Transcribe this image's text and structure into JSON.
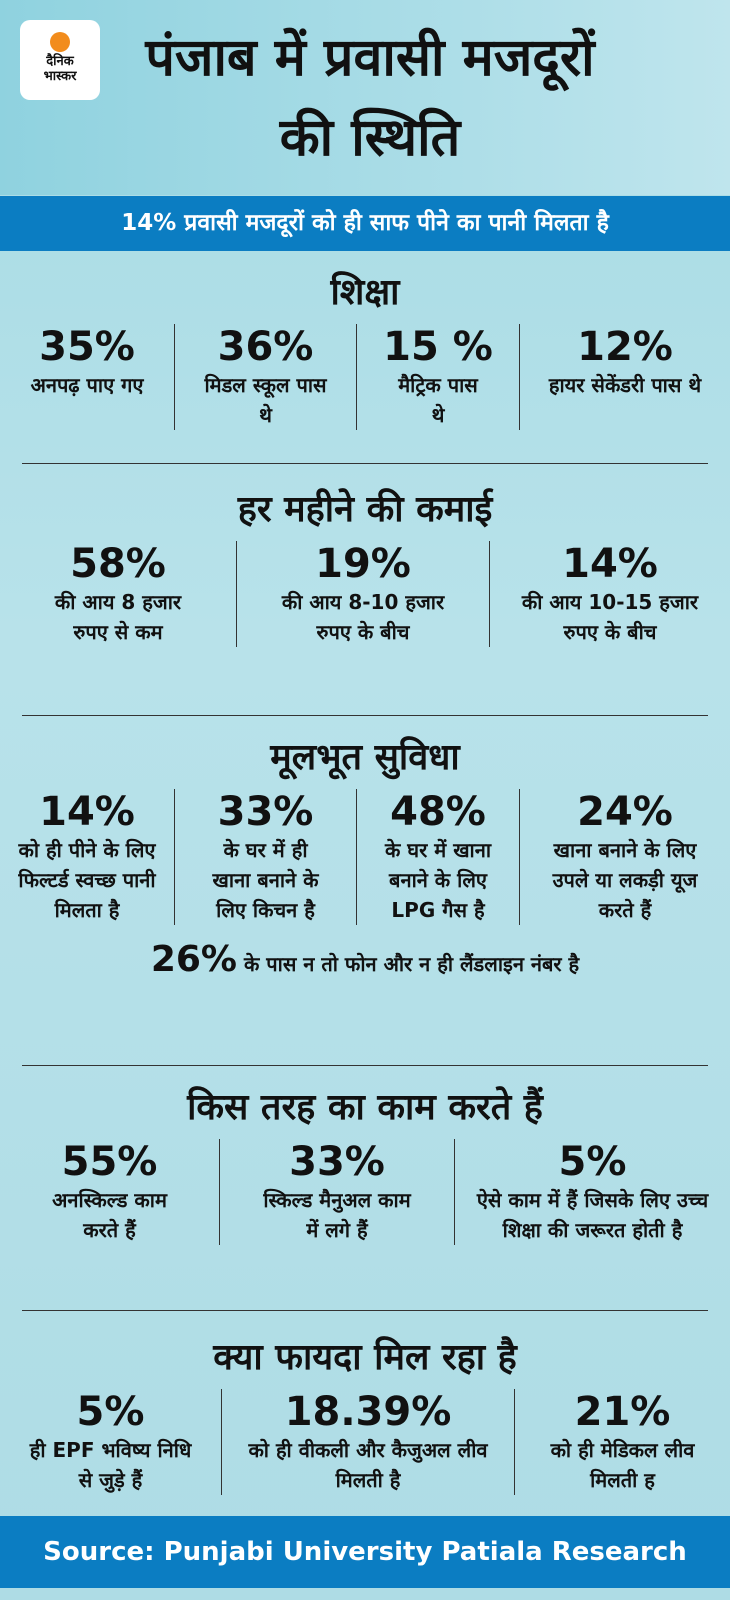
{
  "logo": {
    "line1": "दैनिक",
    "line2": "भास्कर",
    "brand_color": "#f28c1c"
  },
  "title": "पंजाब में प्रवासी मजदूरों की स्थिति",
  "subtitle": "14% प्रवासी मजदूरों को ही साफ पीने का पानी मिलता है",
  "colors": {
    "band": "#0b7dc2",
    "background": "#a6dbe4"
  },
  "sections": [
    {
      "heading": "शिक्षा",
      "items": [
        {
          "pct": "35%",
          "text": "अनपढ़ पाए गए"
        },
        {
          "pct": "36%",
          "text": "मिडल स्कूल पास थे"
        },
        {
          "pct": "15 %",
          "text": "मैट्रिक पास थे"
        },
        {
          "pct": "12%",
          "text": "हायर सेकेंडरी पास थे"
        }
      ]
    },
    {
      "heading": "हर महीने की कमाई",
      "items": [
        {
          "pct": "58%",
          "text": "की आय 8 हजार रुपए से कम"
        },
        {
          "pct": "19%",
          "text": "की आय 8-10 हजार रुपए के बीच"
        },
        {
          "pct": "14%",
          "text": "की आय 10-15 हजार रुपए के बीच"
        }
      ]
    },
    {
      "heading": "मूलभूत सुविधा",
      "items": [
        {
          "pct": "14%",
          "text": "को ही पीने के लिए फिल्टर्ड स्वच्छ पानी मिलता है"
        },
        {
          "pct": "33%",
          "text": "के घर में ही खाना बनाने के लिए किचन है"
        },
        {
          "pct": "48%",
          "text": "के घर में खाना बनाने के लिए LPG गैस है"
        },
        {
          "pct": "24%",
          "text": "खाना बनाने के लिए उपले या लकड़ी यूज करते हैं"
        }
      ],
      "extra": {
        "pct": "26%",
        "text": "के पास न तो फोन और न ही लैंडलाइन नंबर है"
      }
    },
    {
      "heading": "किस तरह का काम करते हैं",
      "items": [
        {
          "pct": "55%",
          "text": "अनस्किल्ड काम करते हैं"
        },
        {
          "pct": "33%",
          "text": "स्किल्ड मैनुअल काम में लगे हैं"
        },
        {
          "pct": "5%",
          "text": "ऐसे काम में हैं जिसके लिए उच्च शिक्षा की जरूरत होती है"
        }
      ]
    },
    {
      "heading": "क्या फायदा मिल रहा है",
      "items": [
        {
          "pct": "5%",
          "text": "ही EPF भविष्य निधि से जुड़े हैं"
        },
        {
          "pct": "18.39%",
          "text": "को ही वीकली और कैजुअल लीव मिलती है"
        },
        {
          "pct": "21%",
          "text": "को ही मेडिकल लीव मिलती ह"
        }
      ]
    }
  ],
  "source": "Source: Punjabi University Patiala Research"
}
